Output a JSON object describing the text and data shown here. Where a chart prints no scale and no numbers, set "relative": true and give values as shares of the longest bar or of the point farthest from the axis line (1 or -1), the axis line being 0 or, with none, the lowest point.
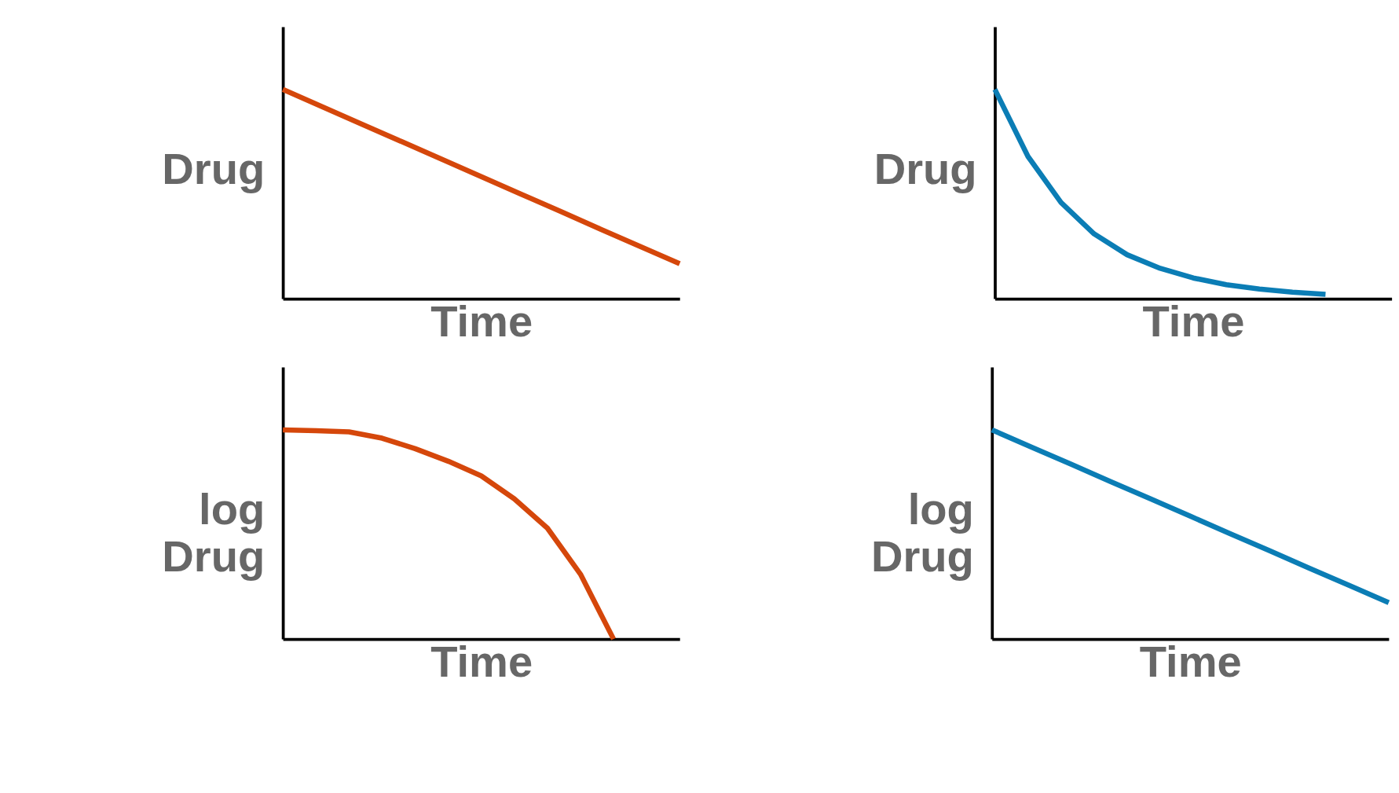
{
  "chart_data": [
    {
      "type": "line",
      "relative": true,
      "xlabel": "Time",
      "ylabel": "Drug",
      "categories": [
        null,
        null,
        null,
        null,
        null,
        null,
        null,
        null,
        null,
        null,
        null
      ],
      "series": [
        {
          "color": "#d5470b",
          "values": [
            1,
            0.917,
            0.833,
            0.75,
            0.667,
            0.583,
            0.5,
            0.417,
            0.333,
            0.25,
            0.167
          ]
        }
      ]
    },
    {
      "type": "line",
      "relative": true,
      "xlabel": "Time",
      "ylabel": "Drug",
      "categories": [
        null,
        null,
        null,
        null,
        null,
        null,
        null,
        null,
        null,
        null,
        null,
        null,
        null
      ],
      "series": [
        {
          "color": "#0b7db5",
          "values": [
            1,
            0.68,
            0.46,
            0.31,
            0.21,
            0.145,
            0.099,
            0.067,
            0.046,
            0.031,
            0.021,
            null,
            null
          ]
        }
      ]
    },
    {
      "type": "line",
      "relative": true,
      "xlabel": "Time",
      "ylabel": "log Drug",
      "categories": [
        null,
        null,
        null,
        null,
        null,
        null,
        null,
        null,
        null,
        null,
        null,
        null,
        null
      ],
      "series": [
        {
          "color": "#d5470b",
          "values": [
            1,
            0.996,
            0.99,
            0.96,
            0.91,
            0.85,
            0.78,
            0.67,
            0.53,
            0.31,
            0,
            null,
            null
          ]
        }
      ]
    },
    {
      "type": "line",
      "relative": true,
      "xlabel": "Time",
      "ylabel": "log Drug",
      "categories": [
        null,
        null,
        null,
        null,
        null,
        null,
        null,
        null,
        null,
        null,
        null
      ],
      "series": [
        {
          "color": "#0b7db5",
          "values": [
            1,
            0.917,
            0.835,
            0.752,
            0.67,
            0.587,
            0.504,
            0.422,
            0.339,
            0.257,
            0.174
          ]
        }
      ]
    }
  ]
}
